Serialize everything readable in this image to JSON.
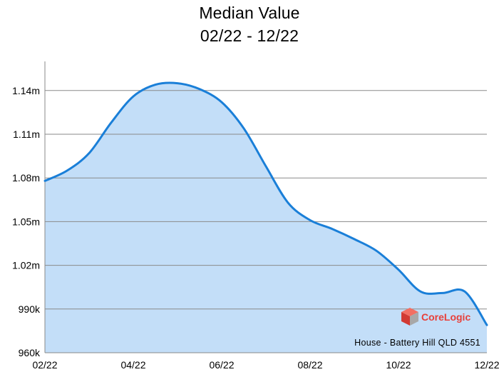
{
  "chart_data": {
    "type": "area",
    "title": "Median Value",
    "subtitle": "02/22 - 12/22",
    "x_tick_labels": [
      "02/22",
      "04/22",
      "06/22",
      "08/22",
      "10/22",
      "12/22"
    ],
    "y_tick_labels": [
      "960k",
      "990k",
      "1.02m",
      "1.05m",
      "1.08m",
      "1.11m",
      "1.14m"
    ],
    "ylim": [
      960000,
      1160000
    ],
    "y_ticks": [
      960000,
      990000,
      1020000,
      1050000,
      1080000,
      1110000,
      1140000
    ],
    "x": [
      0,
      0.5,
      1,
      1.5,
      2,
      2.5,
      3,
      3.5,
      4,
      4.5,
      5,
      5.5,
      6,
      6.5,
      7,
      7.5,
      8,
      8.5,
      9,
      9.5,
      10
    ],
    "series": [
      {
        "values": [
          1078000,
          1085000,
          1097000,
          1118000,
          1136000,
          1144000,
          1145000,
          1141000,
          1132000,
          1114000,
          1088000,
          1063000,
          1051000,
          1045000,
          1038000,
          1030000,
          1017000,
          1002000,
          1001000,
          1002000,
          979000
        ]
      }
    ],
    "line_color": "#1a7fd8",
    "fill_color": "#c3def8",
    "grid": true,
    "legend": "none",
    "caption": "House - Battery Hill QLD 4551",
    "brand": "CoreLogic"
  }
}
